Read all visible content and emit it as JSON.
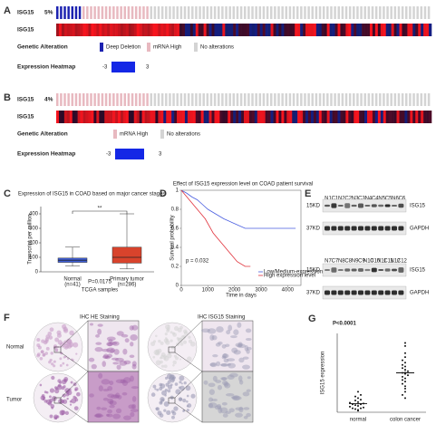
{
  "panel_a": {
    "label": "A",
    "gene": "ISG15",
    "percent": "5%",
    "heatmap_gene": "ISG15",
    "alteration_title": "Genetic Alteration",
    "legend": [
      {
        "label": "Deep Deletion",
        "color": "#1c22b0"
      },
      {
        "label": "mRNA High",
        "color": "#e8b9c0"
      },
      {
        "label": "No alterations",
        "color": "#d4d4d4"
      }
    ],
    "cases": [
      7,
      18,
      75
    ],
    "heatmap_title": "Expression Heatmap",
    "scale_min": -3,
    "scale_max": 3
  },
  "panel_b": {
    "label": "B",
    "gene": "ISG15",
    "percent": "4%",
    "heatmap_gene": "ISG15",
    "alteration_title": "Genetic Alteration",
    "legend": [
      {
        "label": "mRNA High",
        "color": "#e8b9c0"
      },
      {
        "label": "No alterations",
        "color": "#d4d4d4"
      }
    ],
    "cases": [
      25,
      75
    ],
    "heatmap_title": "Expression Heatmap",
    "scale_min": -3,
    "scale_max": 3
  },
  "panel_c": {
    "label": "C",
    "title": "Expression of ISG15 in COAD based on major cancer stages",
    "y_label": "Transcript per million",
    "x_label": "TCGA samples",
    "groups": [
      {
        "name": "Normal",
        "n": "(n=41)",
        "color": "#3f5fd8",
        "min": 40,
        "q1": 65,
        "median": 80,
        "q3": 95,
        "max": 170
      },
      {
        "name": "Primary tumor",
        "n": "(n=286)",
        "color": "#d8432c",
        "min": 20,
        "q1": 60,
        "median": 100,
        "q3": 170,
        "max": 400
      }
    ],
    "significance": "**",
    "p_text": "P=0.0175",
    "ylim": [
      0,
      450
    ],
    "yticks": [
      0,
      100,
      200,
      300,
      400
    ]
  },
  "panel_d": {
    "label": "D",
    "title": "Effect of ISG15 expression level on COAD patient survival",
    "x_label": "Time in days",
    "y_label": "Survival probability",
    "p_text": "p = 0.032",
    "xlim": [
      0,
      4500
    ],
    "ylim": [
      0,
      1
    ],
    "xticks": [
      0,
      1000,
      2000,
      3000,
      4000
    ],
    "yticks": [
      0,
      0.2,
      0.4,
      0.6,
      0.8,
      1
    ],
    "series": [
      {
        "name": "Low/Medium-expression level",
        "color": "#4a5ee0",
        "x": [
          0,
          200,
          400,
          600,
          800,
          1000,
          1300,
          1600,
          2000,
          2400,
          2800,
          4300
        ],
        "y": [
          1,
          0.97,
          0.93,
          0.9,
          0.85,
          0.8,
          0.75,
          0.7,
          0.65,
          0.6,
          0.6,
          0.6
        ]
      },
      {
        "name": "High expression level",
        "color": "#e0303a",
        "x": [
          0,
          300,
          600,
          900,
          1200,
          1500,
          1800,
          2100,
          2400,
          2600
        ],
        "y": [
          1,
          0.9,
          0.8,
          0.7,
          0.55,
          0.45,
          0.35,
          0.25,
          0.2,
          0.2
        ]
      }
    ]
  },
  "panel_e": {
    "label": "E",
    "lanes_top": [
      "N1",
      "C1",
      "N2",
      "C2",
      "N3",
      "C3",
      "N4",
      "C4",
      "N5",
      "C5",
      "N6",
      "C6"
    ],
    "lanes_bottom": [
      "N7",
      "C7",
      "N8",
      "C8",
      "N9",
      "C9",
      "N10",
      "C10",
      "N11",
      "C11",
      "N12",
      "C12"
    ],
    "markers": [
      "15KD",
      "37KD"
    ],
    "proteins": [
      "ISG15",
      "GAPDH"
    ]
  },
  "panel_f": {
    "label": "F",
    "headers": [
      "IHC  HE Staining",
      "IHC  ISG15  Staining"
    ],
    "rows": [
      "Normal",
      "Tumor"
    ]
  },
  "panel_g": {
    "label": "G",
    "p_text": "P<0.0001",
    "y_label": "ISG15 expression",
    "ylim": [
      0,
      10
    ],
    "groups": [
      {
        "name": "normal",
        "mean": 1.1,
        "sem": 0.15,
        "values": [
          0.2,
          0.3,
          0.4,
          0.5,
          0.5,
          0.6,
          0.7,
          0.8,
          0.9,
          1,
          1,
          1.1,
          1.2,
          1.3,
          1.5,
          1.6,
          1.8,
          2,
          2.2,
          2.6
        ]
      },
      {
        "name": "colon cancer",
        "mean": 5.0,
        "sem": 0.3,
        "values": [
          1.8,
          2.2,
          2.6,
          3,
          3.3,
          3.6,
          3.9,
          4.1,
          4.3,
          4.5,
          4.7,
          4.9,
          5,
          5.2,
          5.4,
          5.6,
          5.8,
          6,
          6.3,
          6.6,
          7,
          7.5,
          8.4,
          8.8
        ]
      }
    ]
  }
}
